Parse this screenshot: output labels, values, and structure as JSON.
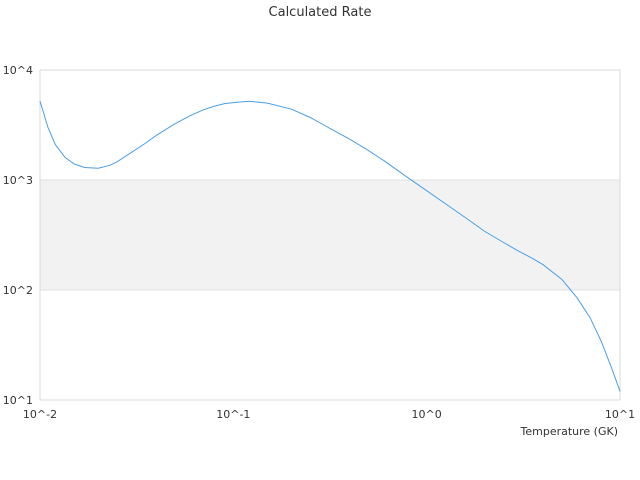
{
  "chart_data": {
    "type": "line",
    "title": "Calculated Rate",
    "xlabel": "Temperature (GK)",
    "ylabel": "",
    "xscale": "log",
    "yscale": "log",
    "xlim": [
      0.01,
      10
    ],
    "ylim": [
      10,
      10000
    ],
    "x_tick_labels": [
      "10^-2",
      "10^-1",
      "10^0",
      "10^1"
    ],
    "y_tick_labels": [
      "10^1",
      "10^2",
      "10^3",
      "10^4"
    ],
    "grid": true,
    "legend": "none",
    "series": [
      {
        "x": [
          0.01,
          0.011,
          0.012,
          0.0135,
          0.015,
          0.017,
          0.02,
          0.023,
          0.025,
          0.03,
          0.035,
          0.04,
          0.05,
          0.06,
          0.07,
          0.08,
          0.09,
          0.1,
          0.12,
          0.15,
          0.2,
          0.25,
          0.3,
          0.4,
          0.5,
          0.6,
          0.8,
          1.0,
          1.3,
          1.6,
          2.0,
          2.5,
          3.0,
          3.5,
          4.0,
          5.0,
          6.0,
          7.0,
          8.0,
          9.0,
          10.0
        ],
        "y": [
          5200,
          3000,
          2100,
          1600,
          1400,
          1300,
          1280,
          1360,
          1460,
          1800,
          2150,
          2550,
          3250,
          3850,
          4350,
          4700,
          4950,
          5050,
          5200,
          5000,
          4400,
          3700,
          3100,
          2350,
          1850,
          1500,
          1050,
          800,
          580,
          450,
          340,
          270,
          225,
          195,
          170,
          125,
          85,
          56,
          34,
          20,
          12
        ]
      }
    ],
    "colors": {
      "line": "#4a9fe6",
      "band_fill": "#f2f2f2",
      "grid": "#e0e0e0",
      "frame": "#d8d8d8",
      "text": "#333333"
    }
  }
}
